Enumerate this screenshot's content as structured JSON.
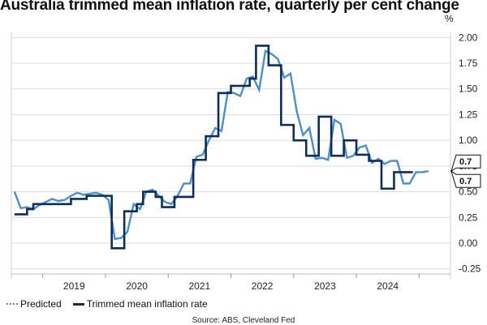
{
  "chart_data": {
    "type": "line",
    "title": "Australia trimmed mean inflation rate, quarterly per cent change",
    "y_unit": "%",
    "ylim": [
      -0.3,
      2.05
    ],
    "y_ticks": [
      -0.25,
      0,
      0.25,
      0.5,
      0.75,
      1.0,
      1.25,
      1.5,
      1.75,
      2.0
    ],
    "y_tick_labels": [
      "-0.25",
      "0.00",
      "0.25",
      "0.50",
      "0.75",
      "1.00",
      "1.25",
      "1.50",
      "1.75",
      "2.00"
    ],
    "x_range": [
      2018.5,
      2025.5
    ],
    "x_tick_labels": [
      {
        "x": 2019.5,
        "label": "2019"
      },
      {
        "x": 2020.5,
        "label": "2020"
      },
      {
        "x": 2021.5,
        "label": "2021"
      },
      {
        "x": 2022.5,
        "label": "2022"
      },
      {
        "x": 2023.5,
        "label": "2023"
      },
      {
        "x": 2024.5,
        "label": "2024"
      }
    ],
    "grid": "horizontal",
    "legend_position": "bottom-left",
    "series": [
      {
        "name": "Predicted",
        "color": "#4a8fd0",
        "style": "line",
        "points": [
          [
            2018.55,
            0.5
          ],
          [
            2018.65,
            0.34
          ],
          [
            2018.75,
            0.35
          ],
          [
            2018.85,
            0.33
          ],
          [
            2018.95,
            0.37
          ],
          [
            2019.05,
            0.4
          ],
          [
            2019.15,
            0.43
          ],
          [
            2019.25,
            0.41
          ],
          [
            2019.35,
            0.42
          ],
          [
            2019.45,
            0.46
          ],
          [
            2019.55,
            0.49
          ],
          [
            2019.65,
            0.47
          ],
          [
            2019.75,
            0.48
          ],
          [
            2019.85,
            0.49
          ],
          [
            2019.95,
            0.47
          ],
          [
            2020.05,
            0.42
          ],
          [
            2020.15,
            0.04
          ],
          [
            2020.25,
            0.05
          ],
          [
            2020.35,
            0.11
          ],
          [
            2020.45,
            0.38
          ],
          [
            2020.55,
            0.33
          ],
          [
            2020.65,
            0.5
          ],
          [
            2020.75,
            0.52
          ],
          [
            2020.85,
            0.46
          ],
          [
            2020.95,
            0.4
          ],
          [
            2021.05,
            0.38
          ],
          [
            2021.15,
            0.46
          ],
          [
            2021.25,
            0.58
          ],
          [
            2021.35,
            0.58
          ],
          [
            2021.45,
            0.84
          ],
          [
            2021.55,
            0.86
          ],
          [
            2021.65,
            1.0
          ],
          [
            2021.75,
            1.12
          ],
          [
            2021.85,
            1.09
          ],
          [
            2021.95,
            1.47
          ],
          [
            2022.05,
            1.46
          ],
          [
            2022.15,
            1.43
          ],
          [
            2022.25,
            1.6
          ],
          [
            2022.35,
            1.62
          ],
          [
            2022.45,
            1.49
          ],
          [
            2022.55,
            1.87
          ],
          [
            2022.65,
            1.84
          ],
          [
            2022.75,
            1.79
          ],
          [
            2022.85,
            1.61
          ],
          [
            2022.95,
            1.65
          ],
          [
            2023.05,
            1.28
          ],
          [
            2023.15,
            1.05
          ],
          [
            2023.25,
            1.12
          ],
          [
            2023.35,
            0.82
          ],
          [
            2023.45,
            0.83
          ],
          [
            2023.55,
            0.81
          ],
          [
            2023.65,
            1.2
          ],
          [
            2023.75,
            1.16
          ],
          [
            2023.85,
            0.83
          ],
          [
            2023.95,
            0.85
          ],
          [
            2024.05,
            0.93
          ],
          [
            2024.15,
            0.95
          ],
          [
            2024.25,
            0.78
          ],
          [
            2024.35,
            0.82
          ],
          [
            2024.45,
            0.77
          ],
          [
            2024.55,
            0.8
          ],
          [
            2024.65,
            0.8
          ],
          [
            2024.75,
            0.58
          ],
          [
            2024.85,
            0.58
          ],
          [
            2024.95,
            0.69
          ],
          [
            2025.05,
            0.69
          ],
          [
            2025.15,
            0.7
          ]
        ]
      },
      {
        "name": "Trimmed mean inflation rate",
        "color": "#0d2d5e",
        "style": "step",
        "points": [
          [
            2018.55,
            0.28
          ],
          [
            2018.75,
            0.33
          ],
          [
            2018.85,
            0.38
          ],
          [
            2019.0,
            0.38
          ],
          [
            2019.25,
            0.38
          ],
          [
            2019.45,
            0.43
          ],
          [
            2019.7,
            0.46
          ],
          [
            2019.95,
            0.46
          ],
          [
            2020.1,
            -0.05
          ],
          [
            2020.3,
            0.31
          ],
          [
            2020.5,
            0.38
          ],
          [
            2020.6,
            0.5
          ],
          [
            2020.8,
            0.45
          ],
          [
            2020.9,
            0.35
          ],
          [
            2021.1,
            0.45
          ],
          [
            2021.3,
            0.45
          ],
          [
            2021.4,
            0.81
          ],
          [
            2021.6,
            1.04
          ],
          [
            2021.8,
            1.46
          ],
          [
            2022.0,
            1.53
          ],
          [
            2022.2,
            1.53
          ],
          [
            2022.3,
            1.6
          ],
          [
            2022.4,
            1.92
          ],
          [
            2022.6,
            1.73
          ],
          [
            2022.8,
            1.15
          ],
          [
            2023.0,
            1.0
          ],
          [
            2023.2,
            0.85
          ],
          [
            2023.4,
            1.23
          ],
          [
            2023.6,
            0.85
          ],
          [
            2023.8,
            1.0
          ],
          [
            2024.0,
            0.86
          ],
          [
            2024.2,
            0.8
          ],
          [
            2024.4,
            0.53
          ],
          [
            2024.6,
            0.69
          ],
          [
            2024.8,
            0.69
          ]
        ]
      }
    ],
    "end_labels": [
      {
        "value": 0.7,
        "label": "0.7"
      },
      {
        "value": 0.7,
        "label": "0.7"
      }
    ],
    "source": "Source: ABS, Cleveland Fed"
  }
}
